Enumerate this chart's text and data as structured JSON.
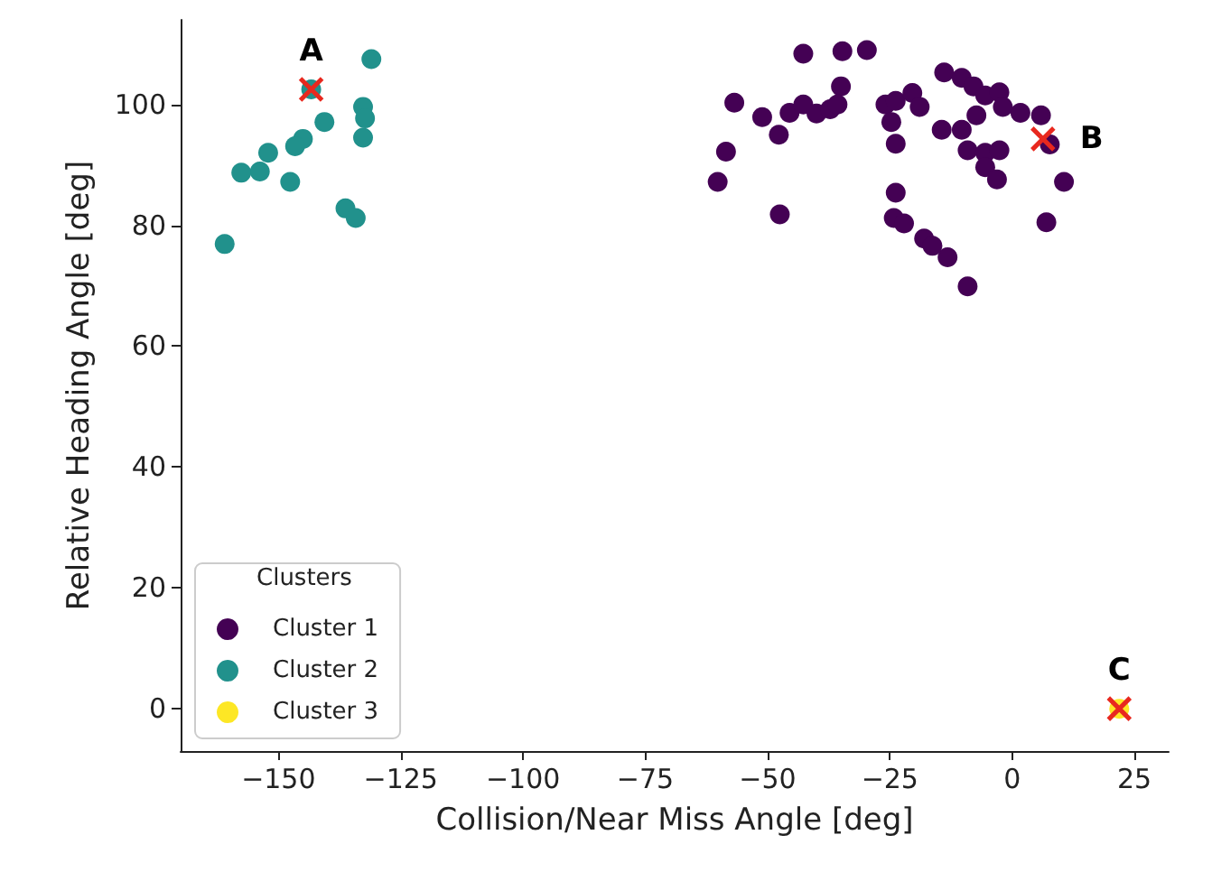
{
  "chart_data": {
    "type": "scatter",
    "xlabel": "Collision/Near Miss Angle [deg]",
    "ylabel": "Relative Heading Angle [deg]",
    "legend_title": "Clusters",
    "legend": "bottom left",
    "grid": false,
    "marker": "circle",
    "xlim": [
      -170,
      32
    ],
    "ylim": [
      -7,
      114
    ],
    "xticks": [
      {
        "value": -150,
        "label": "−150"
      },
      {
        "value": -125,
        "label": "−125"
      },
      {
        "value": -100,
        "label": "−100"
      },
      {
        "value": -75,
        "label": "−75"
      },
      {
        "value": -50,
        "label": "−50"
      },
      {
        "value": -25,
        "label": "−25"
      },
      0,
      25
    ],
    "yticks": [
      0,
      20,
      40,
      60,
      80,
      100
    ],
    "series": [
      {
        "name": "Cluster 1",
        "color": "#440154",
        "x": [
          -42.7,
          -34.7,
          -29.7,
          -56.8,
          -35.0,
          -51.1,
          -45.5,
          -42.7,
          -40.0,
          -37.2,
          -35.7,
          -47.7,
          -58.5,
          -60.2,
          -47.5,
          -25.9,
          -23.8,
          -20.4,
          -18.9,
          -24.7,
          -23.8,
          -23.8,
          -24.2,
          -22.1,
          -18.0,
          -13.2,
          -9.1,
          -13.9,
          -10.3,
          -7.9,
          -5.5,
          -2.6,
          -1.9,
          1.7,
          5.9,
          -14.4,
          -10.3,
          -7.3,
          -9.1,
          -5.5,
          -2.6,
          -5.5,
          -3.1,
          7.7,
          10.6,
          7.0,
          -16.3
        ],
        "values": [
          108.4,
          108.8,
          109.0,
          100.3,
          103.0,
          97.9,
          98.6,
          100.0,
          98.5,
          99.2,
          100.0,
          95.0,
          92.2,
          87.2,
          81.8,
          100.0,
          100.6,
          101.9,
          99.6,
          97.1,
          93.5,
          85.4,
          81.2,
          80.3,
          77.8,
          74.7,
          69.9,
          105.3,
          104.4,
          103.0,
          101.5,
          102.0,
          99.6,
          98.6,
          98.2,
          95.8,
          95.8,
          98.2,
          92.4,
          92.0,
          92.4,
          89.6,
          87.6,
          93.4,
          87.2,
          80.5,
          76.6
        ]
      },
      {
        "name": "Cluster 2",
        "color": "#21918c",
        "x": [
          -131.0,
          -132.7,
          -132.3,
          -132.7,
          -140.6,
          -145.0,
          -146.6,
          -152.1,
          -153.8,
          -157.6,
          -147.6,
          -136.3,
          -134.2,
          -161.0,
          -143.3
        ],
        "values": [
          107.5,
          99.6,
          97.7,
          94.5,
          97.1,
          94.3,
          93.1,
          92.0,
          88.9,
          88.7,
          87.2,
          82.8,
          81.2,
          76.9,
          102.5
        ]
      },
      {
        "name": "Cluster 3",
        "color": "#fde725",
        "x": [
          21.9
        ],
        "values": [
          0
        ]
      }
    ],
    "annotations": [
      {
        "text": "A",
        "x": -143.3,
        "y": 102.5
      },
      {
        "text": "B",
        "x": 6.3,
        "y": 94.3
      },
      {
        "text": "C",
        "x": 21.9,
        "y": 0
      }
    ]
  }
}
